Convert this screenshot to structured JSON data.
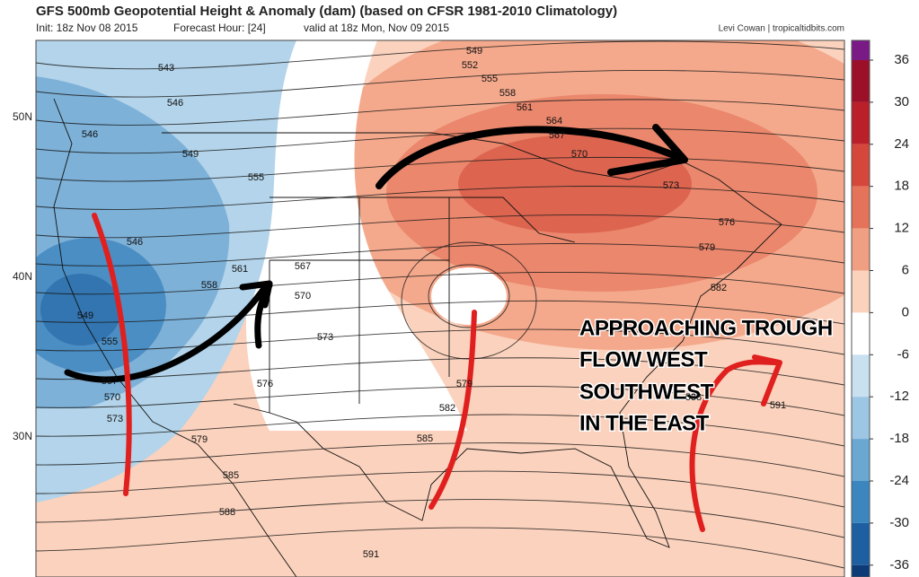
{
  "header": {
    "title": "GFS 500mb Geopotential Height & Anomaly (dam) (based on CFSR 1981-2010 Climatology)",
    "init": "Init: 18z Nov 08 2015",
    "forecast_hour": "Forecast Hour: [24]",
    "valid": "valid at 18z Mon, Nov 09 2015",
    "credit": "Levi Cowan | tropicaltidbits.com"
  },
  "latitude_labels": [
    "50N",
    "40N",
    "30N"
  ],
  "colorbar": {
    "ticks": [
      36,
      30,
      24,
      18,
      12,
      6,
      0,
      -6,
      -12,
      -18,
      -24,
      -30,
      -36
    ]
  },
  "contour_labels": [
    543,
    546,
    546,
    549,
    555,
    546,
    561,
    558,
    567,
    570,
    549,
    555,
    573,
    567,
    570,
    576,
    573,
    579,
    585,
    588,
    591,
    549,
    552,
    555,
    558,
    561,
    564,
    567,
    570,
    573,
    576,
    579,
    582,
    579,
    582,
    585,
    588,
    591
  ],
  "annotation": {
    "lines": [
      "APPROACHING TROUGH",
      "FLOW WEST",
      "SOUTHWEST",
      "IN THE EAST"
    ]
  }
}
